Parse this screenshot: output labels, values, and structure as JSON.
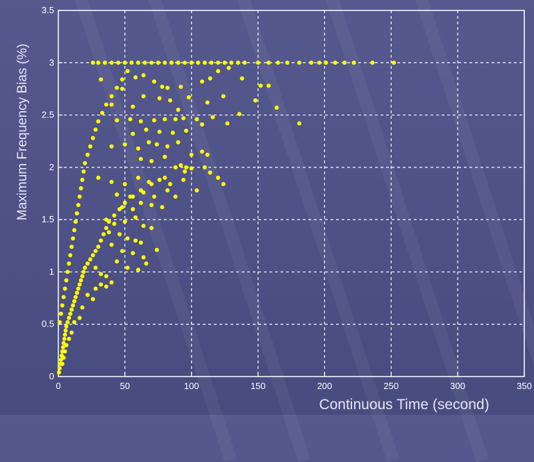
{
  "chart_data": {
    "type": "scatter",
    "title": "",
    "xlabel": "Continuous  Time (second)",
    "ylabel": "Maximum Frequency Bias (%)",
    "xlim": [
      0,
      350
    ],
    "ylim": [
      0,
      3.5
    ],
    "xticks": [
      "0",
      "50",
      "100",
      "150",
      "200",
      "250",
      "300",
      "350"
    ],
    "yticks": [
      "0",
      "0.5",
      "1",
      "1.5",
      "2",
      "2.5",
      "3",
      "3.5"
    ],
    "grid": true,
    "marker_color": "#ffff00",
    "series": [
      {
        "points": [
          [
            0.5,
            0.04
          ],
          [
            1,
            0.08
          ],
          [
            1.5,
            0.12
          ],
          [
            2,
            0.16
          ],
          [
            2.5,
            0.2
          ],
          [
            3,
            0.24
          ],
          [
            3.5,
            0.28
          ],
          [
            4,
            0.32
          ],
          [
            4.5,
            0.36
          ],
          [
            5,
            0.4
          ],
          [
            5.5,
            0.44
          ],
          [
            6,
            0.48
          ],
          [
            7,
            0.52
          ],
          [
            8,
            0.56
          ],
          [
            9,
            0.6
          ],
          [
            10,
            0.64
          ],
          [
            11,
            0.68
          ],
          [
            12,
            0.72
          ],
          [
            13,
            0.76
          ],
          [
            14,
            0.8
          ],
          [
            15,
            0.84
          ],
          [
            16,
            0.88
          ],
          [
            17,
            0.92
          ],
          [
            18,
            0.96
          ],
          [
            19,
            1.0
          ],
          [
            20,
            1.04
          ],
          [
            22,
            1.08
          ],
          [
            24,
            1.12
          ],
          [
            26,
            1.16
          ],
          [
            28,
            1.2
          ],
          [
            30,
            1.24
          ],
          [
            32,
            1.3
          ],
          [
            34,
            1.36
          ],
          [
            36,
            1.42
          ],
          [
            38,
            1.48
          ],
          [
            42,
            1.54
          ],
          [
            46,
            1.6
          ],
          [
            50,
            1.66
          ],
          [
            56,
            1.72
          ],
          [
            62,
            1.78
          ],
          [
            70,
            1.84
          ],
          [
            80,
            1.9
          ],
          [
            95,
            1.96
          ],
          [
            100,
            1.99
          ],
          [
            110,
            2.0
          ],
          [
            1,
            0.52
          ],
          [
            2,
            0.6
          ],
          [
            3,
            0.68
          ],
          [
            4,
            0.76
          ],
          [
            5,
            0.84
          ],
          [
            6,
            0.92
          ],
          [
            7,
            1.0
          ],
          [
            8,
            1.08
          ],
          [
            9,
            1.16
          ],
          [
            10,
            1.24
          ],
          [
            11,
            1.32
          ],
          [
            12,
            1.4
          ],
          [
            13,
            1.48
          ],
          [
            14,
            1.56
          ],
          [
            15,
            1.64
          ],
          [
            16,
            1.72
          ],
          [
            17,
            1.8
          ],
          [
            18,
            1.88
          ],
          [
            19,
            1.96
          ],
          [
            20,
            2.04
          ],
          [
            22,
            2.12
          ],
          [
            24,
            2.2
          ],
          [
            26,
            2.28
          ],
          [
            28,
            2.36
          ],
          [
            30,
            2.44
          ],
          [
            33,
            2.52
          ],
          [
            36,
            2.6
          ],
          [
            40,
            2.68
          ],
          [
            44,
            2.76
          ],
          [
            48,
            2.84
          ],
          [
            52,
            2.92
          ],
          [
            26,
            3.0
          ],
          [
            30,
            3.0
          ],
          [
            35,
            3.0
          ],
          [
            40,
            3.0
          ],
          [
            45,
            3.0
          ],
          [
            50,
            3.0
          ],
          [
            55,
            3.0
          ],
          [
            60,
            3.0
          ],
          [
            65,
            3.0
          ],
          [
            70,
            3.0
          ],
          [
            75,
            3.0
          ],
          [
            80,
            3.0
          ],
          [
            85,
            3.0
          ],
          [
            90,
            3.0
          ],
          [
            95,
            3.0
          ],
          [
            100,
            3.0
          ],
          [
            105,
            3.0
          ],
          [
            110,
            3.0
          ],
          [
            115,
            3.0
          ],
          [
            120,
            3.0
          ],
          [
            125,
            3.0
          ],
          [
            130,
            3.0
          ],
          [
            135,
            3.0
          ],
          [
            140,
            3.0
          ],
          [
            150,
            3.0
          ],
          [
            158,
            3.0
          ],
          [
            165,
            3.0
          ],
          [
            172,
            3.0
          ],
          [
            181,
            3.0
          ],
          [
            190,
            3.0
          ],
          [
            196,
            3.0
          ],
          [
            201,
            3.0
          ],
          [
            208,
            3.0
          ],
          [
            215,
            3.0
          ],
          [
            222,
            3.0
          ],
          [
            236,
            3.0
          ],
          [
            252,
            3.0
          ],
          [
            32,
            2.84
          ],
          [
            48,
            2.75
          ],
          [
            58,
            2.86
          ],
          [
            64,
            2.88
          ],
          [
            72,
            2.82
          ],
          [
            78,
            2.77
          ],
          [
            82,
            2.76
          ],
          [
            92,
            2.77
          ],
          [
            108,
            2.82
          ],
          [
            114,
            2.85
          ],
          [
            120,
            2.92
          ],
          [
            128,
            2.95
          ],
          [
            138,
            2.85
          ],
          [
            152,
            2.78
          ],
          [
            158,
            2.78
          ],
          [
            40,
            2.6
          ],
          [
            56,
            2.58
          ],
          [
            64,
            2.68
          ],
          [
            76,
            2.66
          ],
          [
            84,
            2.64
          ],
          [
            90,
            2.55
          ],
          [
            98,
            2.67
          ],
          [
            112,
            2.62
          ],
          [
            124,
            2.68
          ],
          [
            148,
            2.64
          ],
          [
            164,
            2.57
          ],
          [
            44,
            2.45
          ],
          [
            54,
            2.46
          ],
          [
            62,
            2.44
          ],
          [
            72,
            2.45
          ],
          [
            80,
            2.46
          ],
          [
            88,
            2.46
          ],
          [
            94,
            2.47
          ],
          [
            104,
            2.46
          ],
          [
            116,
            2.48
          ],
          [
            136,
            2.51
          ],
          [
            56,
            2.32
          ],
          [
            66,
            2.36
          ],
          [
            76,
            2.34
          ],
          [
            86,
            2.33
          ],
          [
            96,
            2.35
          ],
          [
            108,
            2.41
          ],
          [
            127,
            2.42
          ],
          [
            181,
            2.42
          ],
          [
            40,
            2.2
          ],
          [
            50,
            2.22
          ],
          [
            60,
            2.18
          ],
          [
            68,
            2.24
          ],
          [
            74,
            2.22
          ],
          [
            82,
            2.2
          ],
          [
            90,
            2.24
          ],
          [
            100,
            2.12
          ],
          [
            108,
            2.15
          ],
          [
            112,
            2.12
          ],
          [
            62,
            2.08
          ],
          [
            70,
            2.06
          ],
          [
            80,
            2.1
          ],
          [
            92,
            2.02
          ],
          [
            88,
            2.0
          ],
          [
            96,
            2.0
          ],
          [
            114,
            1.95
          ],
          [
            120,
            1.9
          ],
          [
            124,
            1.84
          ],
          [
            104,
            1.78
          ],
          [
            30,
            1.9
          ],
          [
            40,
            1.86
          ],
          [
            50,
            1.84
          ],
          [
            60,
            1.9
          ],
          [
            68,
            1.86
          ],
          [
            76,
            1.88
          ],
          [
            84,
            1.84
          ],
          [
            94,
            1.88
          ],
          [
            44,
            1.74
          ],
          [
            54,
            1.72
          ],
          [
            64,
            1.76
          ],
          [
            72,
            1.72
          ],
          [
            82,
            1.78
          ],
          [
            88,
            1.72
          ],
          [
            48,
            1.62
          ],
          [
            56,
            1.6
          ],
          [
            62,
            1.66
          ],
          [
            70,
            1.64
          ],
          [
            78,
            1.62
          ],
          [
            36,
            1.5
          ],
          [
            42,
            1.46
          ],
          [
            50,
            1.48
          ],
          [
            58,
            1.52
          ],
          [
            64,
            1.44
          ],
          [
            70,
            1.42
          ],
          [
            38,
            1.38
          ],
          [
            46,
            1.36
          ],
          [
            52,
            1.32
          ],
          [
            58,
            1.3
          ],
          [
            62,
            1.28
          ],
          [
            40,
            1.26
          ],
          [
            48,
            1.2
          ],
          [
            56,
            1.18
          ],
          [
            64,
            1.14
          ],
          [
            74,
            1.21
          ],
          [
            66,
            1.08
          ],
          [
            44,
            1.1
          ],
          [
            52,
            1.04
          ],
          [
            60,
            1.02
          ],
          [
            28,
            1.04
          ],
          [
            32,
            0.98
          ],
          [
            36,
            0.96
          ],
          [
            40,
            0.9
          ],
          [
            36,
            0.86
          ],
          [
            32,
            0.88
          ],
          [
            28,
            0.84
          ],
          [
            26,
            0.74
          ],
          [
            22,
            0.78
          ],
          [
            18,
            0.66
          ],
          [
            16,
            0.56
          ],
          [
            12,
            0.52
          ],
          [
            10,
            0.42
          ],
          [
            8,
            0.36
          ],
          [
            6,
            0.3
          ],
          [
            5,
            0.24
          ],
          [
            4,
            0.18
          ],
          [
            3,
            0.12
          ]
        ]
      }
    ]
  }
}
